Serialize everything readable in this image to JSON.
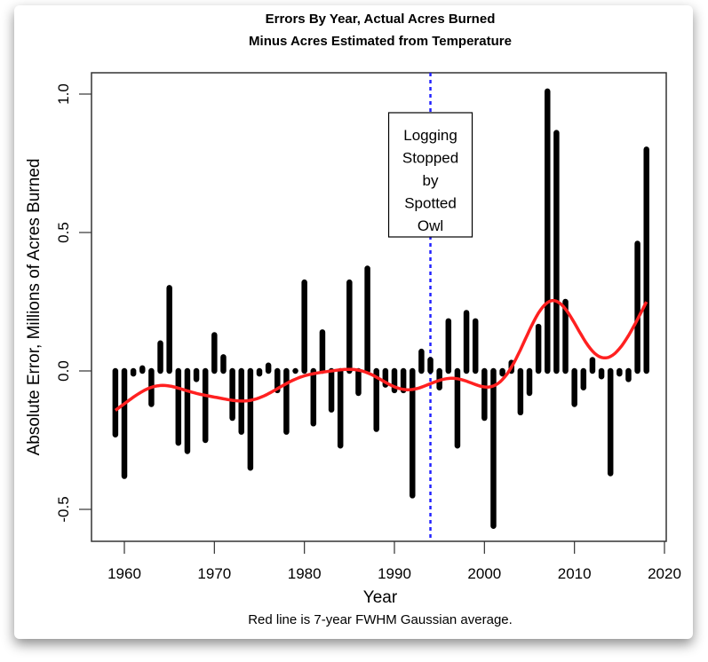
{
  "chart_data": {
    "type": "bar",
    "title": [
      "Errors By Year, Actual Acres Burned",
      "Minus Acres Estimated from Temperature"
    ],
    "xlabel": "Year",
    "ylabel": "Absolute Error, Millions of Acres Burned",
    "caption": "Red line is 7-year FWHM Gaussian average.",
    "xlim": [
      1956.5,
      2021
    ],
    "ylim": [
      -0.62,
      1.08
    ],
    "xticks": [
      1960,
      1970,
      1980,
      1990,
      2000,
      2010,
      2020
    ],
    "yticks": [
      {
        "value": -0.5,
        "label": "-0.5"
      },
      {
        "value": 0,
        "label": "0.0"
      },
      {
        "value": 0.5,
        "label": "0.5"
      },
      {
        "value": 1.0,
        "label": "1.0"
      }
    ],
    "grid": false,
    "x": [
      1959,
      1960,
      1961,
      1962,
      1963,
      1964,
      1965,
      1966,
      1967,
      1968,
      1969,
      1970,
      1971,
      1972,
      1973,
      1974,
      1975,
      1976,
      1977,
      1978,
      1979,
      1980,
      1981,
      1982,
      1983,
      1984,
      1985,
      1986,
      1987,
      1988,
      1989,
      1990,
      1991,
      1992,
      1993,
      1994,
      1995,
      1996,
      1997,
      1998,
      1999,
      2000,
      2001,
      2002,
      2003,
      2004,
      2005,
      2006,
      2007,
      2008,
      2009,
      2010,
      2011,
      2012,
      2013,
      2014,
      2015,
      2016,
      2017,
      2018
    ],
    "values": [
      -0.23,
      -0.38,
      -0.01,
      0.01,
      -0.12,
      0.1,
      0.3,
      -0.26,
      -0.29,
      -0.03,
      -0.25,
      0.13,
      0.05,
      -0.17,
      -0.22,
      -0.35,
      -0.01,
      0.02,
      -0.07,
      -0.22,
      0.0,
      0.32,
      -0.19,
      0.14,
      -0.14,
      -0.27,
      0.32,
      -0.08,
      0.37,
      -0.21,
      -0.05,
      -0.07,
      -0.07,
      -0.45,
      0.07,
      0.04,
      -0.06,
      0.18,
      -0.27,
      0.21,
      0.18,
      -0.17,
      -0.56,
      -0.01,
      0.03,
      -0.15,
      -0.08,
      0.16,
      1.01,
      0.86,
      0.25,
      -0.12,
      -0.06,
      0.04,
      -0.02,
      -0.37,
      -0.01,
      -0.03,
      0.46,
      0.8
    ],
    "bar_color": "#000000",
    "smooth": {
      "method": "Gaussian",
      "fwhm_years": 7,
      "color": "#ff2020"
    },
    "vline": {
      "x": 1994,
      "color": "#2222ff",
      "style": "dotted"
    },
    "annotation": {
      "x": 1994,
      "lines": [
        "Logging",
        "Stopped",
        "by",
        "Spotted",
        "Owl"
      ]
    }
  }
}
